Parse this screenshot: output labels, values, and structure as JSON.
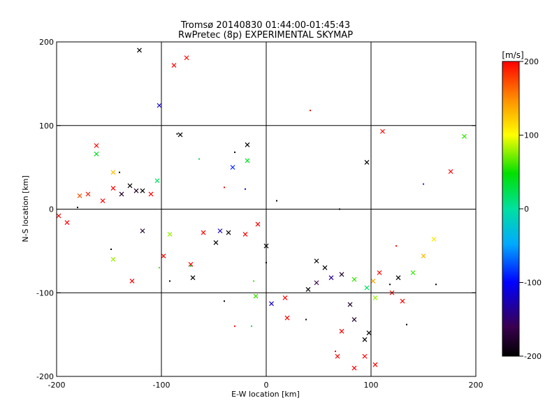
{
  "chart_data": {
    "type": "scatter",
    "title": "Tromsø 20140830 01:44:00-01:45:43",
    "subtitle": "RwPretec (8p) EXPERIMENTAL SKYMAP",
    "xlabel": "E-W location [km]",
    "ylabel": "N-S location [km]",
    "xlim": [
      -200,
      200
    ],
    "ylim": [
      -200,
      200
    ],
    "xticks": [
      "-200",
      "-100",
      "0",
      "100",
      "200"
    ],
    "yticks": [
      "-200",
      "-100",
      "0",
      "100",
      "200"
    ],
    "grid": true,
    "colorbar": {
      "label": "[m/s]",
      "range": [
        -200,
        200
      ],
      "ticks": [
        "200",
        "100",
        "0",
        "-100",
        "-200"
      ]
    },
    "markers_x": [
      {
        "x": -121,
        "y": 190,
        "v": -200
      },
      {
        "x": -88,
        "y": 172,
        "v": 200
      },
      {
        "x": -76,
        "y": 181,
        "v": 200
      },
      {
        "x": -102,
        "y": 124,
        "v": -120
      },
      {
        "x": -162,
        "y": 76,
        "v": 200
      },
      {
        "x": -162,
        "y": 66,
        "v": 40
      },
      {
        "x": -82,
        "y": 89,
        "v": -200
      },
      {
        "x": -18,
        "y": 77,
        "v": -200
      },
      {
        "x": -32,
        "y": 50,
        "v": -90
      },
      {
        "x": -18,
        "y": 58,
        "v": 40
      },
      {
        "x": 96,
        "y": 56,
        "v": -200
      },
      {
        "x": 189,
        "y": 87,
        "v": 60
      },
      {
        "x": 111,
        "y": 93,
        "v": 200
      },
      {
        "x": 176,
        "y": 45,
        "v": 200
      },
      {
        "x": -146,
        "y": 44,
        "v": 130
      },
      {
        "x": -138,
        "y": 18,
        "v": -180
      },
      {
        "x": -130,
        "y": 28,
        "v": -200
      },
      {
        "x": -118,
        "y": 22,
        "v": -200
      },
      {
        "x": -124,
        "y": 22,
        "v": -180
      },
      {
        "x": -178,
        "y": 16,
        "v": 170
      },
      {
        "x": -198,
        "y": -8,
        "v": 200
      },
      {
        "x": -156,
        "y": 10,
        "v": 200
      },
      {
        "x": -146,
        "y": 25,
        "v": 200
      },
      {
        "x": -190,
        "y": -16,
        "v": 200
      },
      {
        "x": -146,
        "y": -60,
        "v": 80
      },
      {
        "x": -128,
        "y": -86,
        "v": 200
      },
      {
        "x": -98,
        "y": -56,
        "v": 200
      },
      {
        "x": -92,
        "y": -30,
        "v": 80
      },
      {
        "x": -118,
        "y": -26,
        "v": -180
      },
      {
        "x": -104,
        "y": 34,
        "v": 20
      },
      {
        "x": -44,
        "y": -26,
        "v": -120
      },
      {
        "x": -36,
        "y": -28,
        "v": -200
      },
      {
        "x": -8,
        "y": -18,
        "v": 200
      },
      {
        "x": -20,
        "y": -30,
        "v": 200
      },
      {
        "x": 0,
        "y": -44,
        "v": -200
      },
      {
        "x": -72,
        "y": -66,
        "v": 200
      },
      {
        "x": -70,
        "y": -82,
        "v": -200
      },
      {
        "x": -10,
        "y": -104,
        "v": 60
      },
      {
        "x": 5,
        "y": -113,
        "v": -120
      },
      {
        "x": 18,
        "y": -106,
        "v": 200
      },
      {
        "x": 48,
        "y": -62,
        "v": -200
      },
      {
        "x": 56,
        "y": -70,
        "v": -200
      },
      {
        "x": 72,
        "y": -78,
        "v": -180
      },
      {
        "x": 84,
        "y": -84,
        "v": 60
      },
      {
        "x": 96,
        "y": -94,
        "v": 20
      },
      {
        "x": 102,
        "y": -86,
        "v": 140
      },
      {
        "x": 108,
        "y": -76,
        "v": 200
      },
      {
        "x": 126,
        "y": -82,
        "v": -200
      },
      {
        "x": 140,
        "y": -76,
        "v": 60
      },
      {
        "x": 150,
        "y": -56,
        "v": 130
      },
      {
        "x": 80,
        "y": -114,
        "v": -180
      },
      {
        "x": 84,
        "y": -132,
        "v": -180
      },
      {
        "x": 94,
        "y": -156,
        "v": -200
      },
      {
        "x": 98,
        "y": -148,
        "v": -200
      },
      {
        "x": 72,
        "y": -146,
        "v": 200
      },
      {
        "x": 94,
        "y": -176,
        "v": 200
      },
      {
        "x": 104,
        "y": -186,
        "v": 200
      },
      {
        "x": 68,
        "y": -176,
        "v": 200
      },
      {
        "x": 20,
        "y": -130,
        "v": 200
      },
      {
        "x": 40,
        "y": -96,
        "v": -200
      },
      {
        "x": 104,
        "y": -106,
        "v": 80
      },
      {
        "x": 120,
        "y": -100,
        "v": 200
      },
      {
        "x": 130,
        "y": -110,
        "v": 200
      },
      {
        "x": 84,
        "y": -190,
        "v": 200
      },
      {
        "x": 48,
        "y": -88,
        "v": -160
      },
      {
        "x": 62,
        "y": -82,
        "v": -140
      },
      {
        "x": -170,
        "y": 18,
        "v": 190
      },
      {
        "x": -110,
        "y": 18,
        "v": 200
      },
      {
        "x": -60,
        "y": -28,
        "v": 200
      },
      {
        "x": -48,
        "y": -40,
        "v": -200
      },
      {
        "x": 160,
        "y": -36,
        "v": 110
      }
    ],
    "markers_dot": [
      {
        "x": -140,
        "y": 44,
        "v": -200
      },
      {
        "x": -180,
        "y": 2,
        "v": -200
      },
      {
        "x": -148,
        "y": -48,
        "v": -200
      },
      {
        "x": -85,
        "y": 90,
        "v": -200
      },
      {
        "x": -64,
        "y": 60,
        "v": 30
      },
      {
        "x": -40,
        "y": 26,
        "v": 200
      },
      {
        "x": -20,
        "y": 24,
        "v": -120
      },
      {
        "x": 10,
        "y": 10,
        "v": -200
      },
      {
        "x": 42,
        "y": 118,
        "v": 200
      },
      {
        "x": -30,
        "y": 68,
        "v": -200
      },
      {
        "x": -72,
        "y": -68,
        "v": 30
      },
      {
        "x": -92,
        "y": -86,
        "v": -200
      },
      {
        "x": 0,
        "y": -64,
        "v": -200
      },
      {
        "x": -12,
        "y": -86,
        "v": 60
      },
      {
        "x": -30,
        "y": -140,
        "v": 200
      },
      {
        "x": -14,
        "y": -140,
        "v": 30
      },
      {
        "x": 38,
        "y": -132,
        "v": -200
      },
      {
        "x": 66,
        "y": -170,
        "v": 200
      },
      {
        "x": 134,
        "y": -138,
        "v": -200
      },
      {
        "x": 162,
        "y": -90,
        "v": -200
      },
      {
        "x": 150,
        "y": 30,
        "v": -90
      },
      {
        "x": 118,
        "y": -90,
        "v": -200
      },
      {
        "x": 70,
        "y": 0,
        "v": -200
      },
      {
        "x": -102,
        "y": -70,
        "v": 60
      },
      {
        "x": -40,
        "y": -110,
        "v": -200
      },
      {
        "x": 124,
        "y": -44,
        "v": 200
      }
    ]
  }
}
